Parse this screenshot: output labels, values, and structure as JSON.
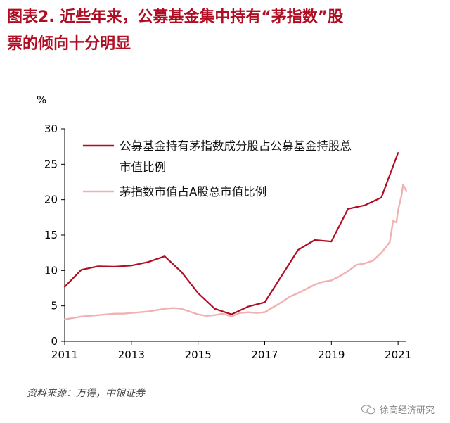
{
  "title_line1": "图表2.  近些年来，公募基金集中持有“茅指数”股",
  "title_line2": "票的倾向十分明显",
  "source": "资料来源：万得，中银证券",
  "watermark": "徐高经济研究",
  "colors": {
    "series1": "#b00d23",
    "series2": "#f2b1b1",
    "axis": "#000000",
    "title": "#b00d23"
  },
  "chart_data": {
    "type": "line",
    "ylabel": "%",
    "ylim": [
      0,
      30
    ],
    "yticks": [
      0,
      5,
      10,
      15,
      20,
      25,
      30
    ],
    "xlim": [
      2011,
      2021.25
    ],
    "xticks": [
      2011,
      2013,
      2015,
      2017,
      2019,
      2021
    ],
    "xtick_labels": [
      "2011",
      "2013",
      "2015",
      "2017",
      "2019",
      "2021"
    ],
    "legend_position": "top-left",
    "series": [
      {
        "name": "公募基金持有茅指数成分股占公募基金持股总市值比例",
        "x": [
          2011.0,
          2011.5,
          2012.0,
          2012.5,
          2013.0,
          2013.5,
          2014.0,
          2014.5,
          2015.0,
          2015.5,
          2016.0,
          2016.5,
          2017.0,
          2017.5,
          2018.0,
          2018.5,
          2019.0,
          2019.5,
          2020.0,
          2020.5,
          2021.0
        ],
        "values": [
          7.7,
          10.1,
          10.6,
          10.55,
          10.7,
          11.2,
          12.0,
          9.8,
          6.8,
          4.6,
          3.8,
          4.9,
          5.5,
          9.2,
          12.9,
          14.3,
          14.1,
          18.7,
          19.2,
          20.3,
          26.6
        ]
      },
      {
        "name": "茅指数市值占A股总市值比例",
        "x": [
          2011.0,
          2011.25,
          2011.5,
          2011.75,
          2012.0,
          2012.25,
          2012.5,
          2012.75,
          2013.0,
          2013.25,
          2013.5,
          2013.75,
          2014.0,
          2014.25,
          2014.5,
          2014.75,
          2015.0,
          2015.25,
          2015.5,
          2015.75,
          2016.0,
          2016.25,
          2016.5,
          2016.75,
          2017.0,
          2017.25,
          2017.5,
          2017.75,
          2018.0,
          2018.25,
          2018.5,
          2018.75,
          2019.0,
          2019.25,
          2019.5,
          2019.75,
          2020.0,
          2020.25,
          2020.5,
          2020.75,
          2020.85,
          2020.95,
          2021.0,
          2021.1,
          2021.15,
          2021.25
        ],
        "values": [
          3.1,
          3.3,
          3.5,
          3.6,
          3.7,
          3.8,
          3.9,
          3.9,
          4.0,
          4.1,
          4.2,
          4.4,
          4.6,
          4.7,
          4.6,
          4.2,
          3.8,
          3.6,
          3.7,
          3.9,
          3.5,
          4.0,
          4.1,
          4.0,
          4.1,
          4.8,
          5.5,
          6.3,
          6.8,
          7.4,
          8.0,
          8.4,
          8.6,
          9.2,
          9.9,
          10.8,
          11.0,
          11.4,
          12.5,
          14.0,
          17.0,
          16.8,
          18.5,
          20.5,
          22.1,
          21.2
        ]
      }
    ]
  }
}
